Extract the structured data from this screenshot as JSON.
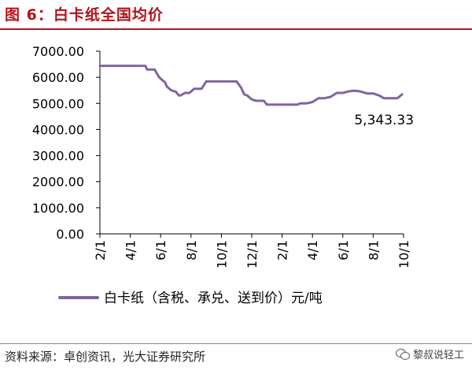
{
  "header": {
    "title": "图 6：白卡纸全国均价"
  },
  "footer": {
    "source": "资料来源：卓创资讯，光大证券研究所",
    "watermark": "黎叔说轻工",
    "watermark_icon": "wechat-icon"
  },
  "colors": {
    "title": "#b2131d",
    "line": "#8064a2",
    "axis": "#000000"
  },
  "chart_data": {
    "type": "line",
    "title": "",
    "xlabel": "",
    "ylabel": "",
    "ylim": [
      0,
      7000
    ],
    "yticks": [
      0,
      1000,
      2000,
      3000,
      4000,
      5000,
      6000,
      7000
    ],
    "ytick_labels": [
      "0.00",
      "1000.00",
      "2000.00",
      "3000.00",
      "4000.00",
      "5000.00",
      "6000.00",
      "7000.00"
    ],
    "xtick_labels": [
      "2/1",
      "4/1",
      "6/1",
      "8/1",
      "10/1",
      "12/1",
      "2/1",
      "4/1",
      "6/1",
      "8/1",
      "10/1"
    ],
    "xrange": [
      0,
      20
    ],
    "grid": false,
    "legend_position": "bottom",
    "series": [
      {
        "name": "白卡纸（含税、承兑、送到价）元/吨",
        "x": [
          0,
          1.8,
          3.0,
          3.1,
          3.6,
          3.7,
          3.9,
          4.1,
          4.3,
          4.4,
          4.7,
          5.0,
          5.2,
          5.3,
          5.6,
          5.9,
          6.2,
          6.5,
          6.7,
          7.0,
          7.3,
          7.6,
          8.0,
          8.6,
          9.0,
          9.3,
          9.5,
          9.7,
          10.0,
          10.3,
          10.8,
          11.0,
          11.3,
          11.6,
          12.0,
          12.4,
          13.0,
          13.2,
          13.6,
          14.0,
          14.4,
          14.8,
          15.2,
          15.6,
          16.0,
          16.3,
          16.6,
          16.9,
          17.2,
          17.6,
          18.0,
          18.4,
          18.7,
          19.0,
          19.3,
          19.6,
          19.9
        ],
        "values": [
          6440,
          6440,
          6440,
          6300,
          6300,
          6200,
          6000,
          5900,
          5800,
          5650,
          5500,
          5450,
          5300,
          5300,
          5400,
          5400,
          5560,
          5560,
          5560,
          5840,
          5840,
          5840,
          5840,
          5840,
          5840,
          5600,
          5350,
          5300,
          5150,
          5100,
          5100,
          4950,
          4950,
          4950,
          4950,
          4950,
          4950,
          5000,
          5000,
          5050,
          5200,
          5200,
          5250,
          5400,
          5400,
          5450,
          5480,
          5480,
          5450,
          5380,
          5380,
          5300,
          5200,
          5200,
          5200,
          5200,
          5343.33
        ]
      }
    ],
    "annotations": [
      {
        "text": "5,343.33",
        "x": 19.9,
        "y": 5343.33
      }
    ]
  }
}
